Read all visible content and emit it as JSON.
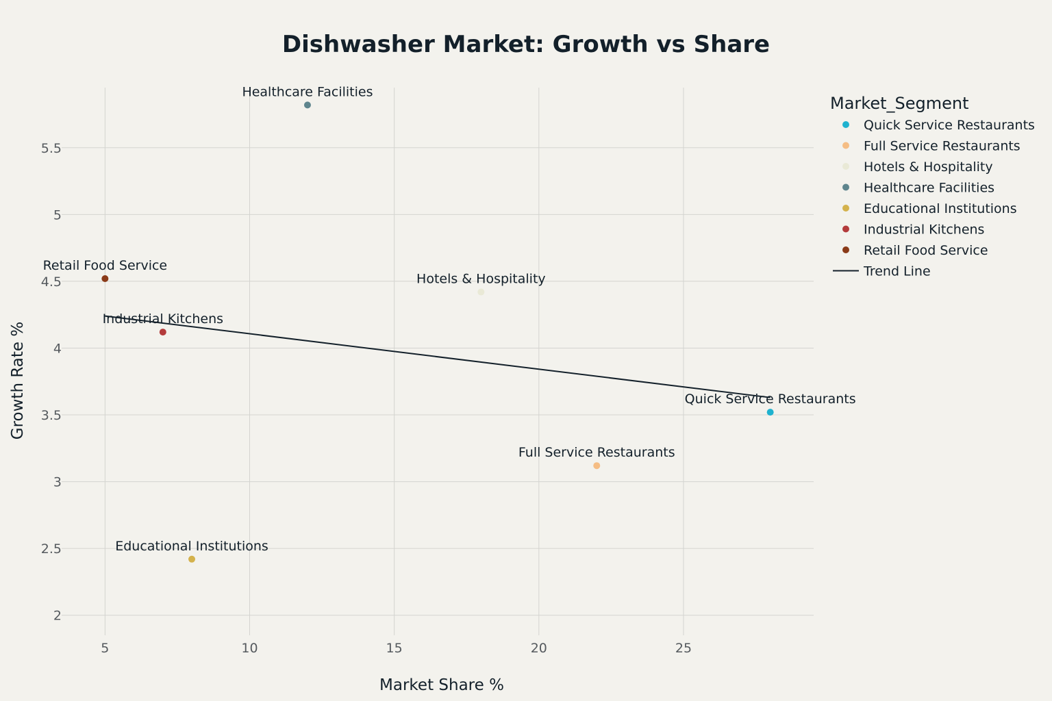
{
  "chart_data": {
    "type": "scatter",
    "title": "Dishwasher Market: Growth vs Share",
    "xlabel": "Market Share %",
    "ylabel": "Growth Rate %",
    "xlim": [
      3.5,
      29.5
    ],
    "ylim": [
      1.85,
      5.95
    ],
    "x_ticks": [
      5,
      10,
      15,
      20,
      25
    ],
    "y_ticks": [
      2,
      2.5,
      3,
      3.5,
      4,
      4.5,
      5,
      5.5
    ],
    "x_tick_labels": [
      "5",
      "10",
      "15",
      "20",
      "25"
    ],
    "y_tick_labels": [
      "2",
      "2.5",
      "3",
      "3.5",
      "4",
      "4.5",
      "5",
      "5.5"
    ],
    "grid": true,
    "legend": {
      "title": "Market_Segment",
      "position": "right"
    },
    "series": [
      {
        "name": "Quick Service Restaurants",
        "x": 28,
        "y": 3.52,
        "label": "Quick Service Restaurants",
        "color": "#1fb2cf"
      },
      {
        "name": "Full Service Restaurants",
        "x": 22,
        "y": 3.12,
        "label": "Full Service Restaurants",
        "color": "#f5bd84"
      },
      {
        "name": "Hotels & Hospitality",
        "x": 18,
        "y": 4.42,
        "label": "Hotels & Hospitality",
        "color": "#e9e9d6"
      },
      {
        "name": "Healthcare Facilities",
        "x": 12,
        "y": 5.82,
        "label": "Healthcare Facilities",
        "color": "#5e858d"
      },
      {
        "name": "Educational Institutions",
        "x": 8,
        "y": 2.42,
        "label": "Educational Institutions",
        "color": "#d4b24c"
      },
      {
        "name": "Industrial Kitchens",
        "x": 7,
        "y": 4.12,
        "label": "Industrial Kitchens",
        "color": "#b33b3b"
      },
      {
        "name": "Retail Food Service",
        "x": 5,
        "y": 4.52,
        "label": "Retail Food Service",
        "color": "#8a3a18"
      }
    ],
    "trend_line": {
      "name": "Trend Line",
      "x": [
        5,
        28
      ],
      "y": [
        4.24,
        3.63
      ],
      "color": "#13202a"
    }
  }
}
